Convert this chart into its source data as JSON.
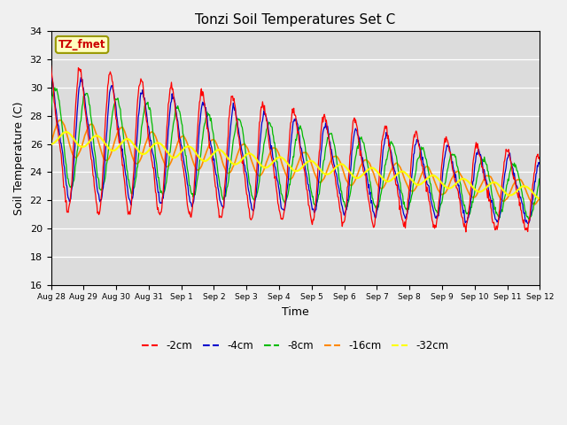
{
  "title": "Tonzi Soil Temperatures Set C",
  "xlabel": "Time",
  "ylabel": "Soil Temperature (C)",
  "ylim": [
    16,
    34
  ],
  "yticks": [
    16,
    18,
    20,
    22,
    24,
    26,
    28,
    30,
    32,
    34
  ],
  "annotation": "TZ_fmet",
  "colors": {
    "-2cm": "#ff0000",
    "-4cm": "#0000cc",
    "-8cm": "#00bb00",
    "-16cm": "#ff8800",
    "-32cm": "#ffff00"
  },
  "legend_labels": [
    "-2cm",
    "-4cm",
    "-8cm",
    "-16cm",
    "-32cm"
  ],
  "plot_bg_color": "#dcdcdc",
  "fig_bg_color": "#f0f0f0",
  "tick_labels": [
    "Aug 28",
    "Aug 29",
    "Aug 30",
    "Aug 31",
    "Sep 1",
    "Sep 2",
    "Sep 3",
    "Sep 4",
    "Sep 5",
    "Sep 6",
    "Sep 7",
    "Sep 8",
    "Sep 9",
    "Sep 10",
    "Sep 11",
    "Sep 12"
  ],
  "n_days": 16,
  "samples_per_day": 48
}
